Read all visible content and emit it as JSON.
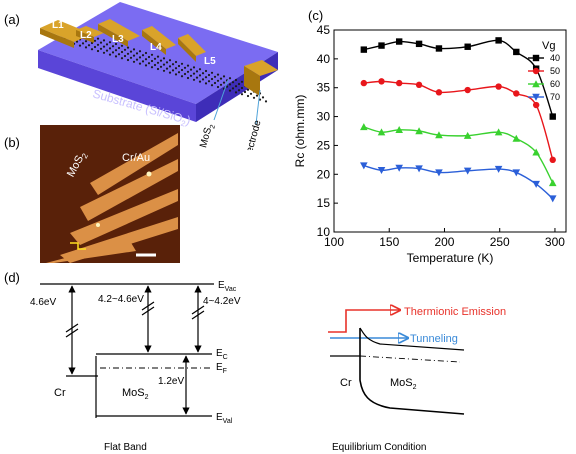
{
  "panels": {
    "a": {
      "label": "(a)",
      "segment_labels": [
        "L1",
        "L2",
        "L3",
        "L4",
        "L5"
      ],
      "substrate_label": "Substrate (Si/SiO",
      "substrate_sub": "2",
      "substrate_end": ")",
      "mos2_label": "MoS",
      "mos2_sub": "2",
      "electrode_label": "Electrode",
      "colors": {
        "substrate_top": "#7b6cf2",
        "substrate_front": "#5a45d8",
        "electrode": "#d9a32a",
        "annotation": "#4fa3d9"
      }
    },
    "b": {
      "label": "(b)",
      "mos2_label": "MoS",
      "mos2_sub": "2",
      "metal_label": "Cr/Au",
      "colors": {
        "background": "#6a2a0c",
        "fingers": "#e3964a"
      }
    },
    "c": {
      "label": "(c)"
    },
    "d": {
      "label": "(d)",
      "left": {
        "levels": {
          "vac": "E",
          "vac_sub": "Vac",
          "c": "E",
          "c_sub": "C",
          "f": "E",
          "f_sub": "F",
          "val": "E",
          "val_sub": "Val"
        },
        "barriers": [
          "4.6eV",
          "4.2~4.6eV",
          "4~4.2eV"
        ],
        "gap": "1.2eV",
        "metal": "Cr",
        "semi": "MoS",
        "semi_sub": "2",
        "caption": "Flat Band"
      },
      "right": {
        "thermionic": "Thermionic Emission",
        "tunneling": "Tunneling",
        "metal": "Cr",
        "semi": "MoS",
        "semi_sub": "2",
        "caption": "Equilibrium Condition",
        "colors": {
          "thermionic": "#e8322a",
          "tunneling": "#3a8ad8"
        }
      }
    }
  },
  "chart_data": {
    "type": "line",
    "title": "",
    "xlabel": "Temperature (K)",
    "ylabel": "Rc (ohm.mm)",
    "xlim": [
      100,
      310
    ],
    "ylim": [
      10,
      45
    ],
    "xticks": [
      100,
      150,
      200,
      250,
      300
    ],
    "yticks": [
      10,
      15,
      20,
      25,
      30,
      35,
      40,
      45
    ],
    "grid": false,
    "legend_title": "Vg",
    "legend_position": "top-right",
    "x": [
      127,
      143,
      159,
      177,
      195,
      221,
      249,
      265,
      283,
      298
    ],
    "series": [
      {
        "name": "40",
        "color": "#000000",
        "marker": "square",
        "values": [
          41.6,
          42.3,
          43.0,
          42.6,
          41.8,
          42.1,
          43.2,
          41.2,
          38.3,
          30.0
        ]
      },
      {
        "name": "50",
        "color": "#e8161b",
        "marker": "circle",
        "values": [
          35.8,
          36.1,
          35.8,
          35.5,
          34.2,
          34.6,
          35.2,
          34.0,
          32.0,
          22.5
        ]
      },
      {
        "name": "60",
        "color": "#39d12f",
        "marker": "triangle-up",
        "values": [
          28.2,
          27.3,
          27.7,
          27.5,
          26.8,
          26.7,
          27.3,
          26.2,
          23.8,
          18.5
        ]
      },
      {
        "name": "70",
        "color": "#2b5fd8",
        "marker": "triangle-down",
        "values": [
          21.5,
          20.7,
          21.1,
          21.0,
          20.3,
          20.6,
          20.9,
          20.3,
          18.3,
          15.8
        ]
      }
    ]
  }
}
